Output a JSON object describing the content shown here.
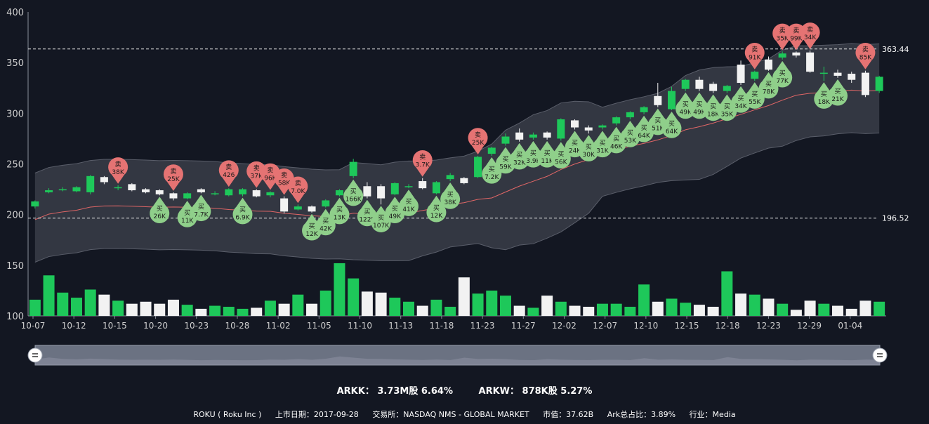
{
  "chart_data": {
    "type": "candlestick",
    "ylim": [
      100,
      400
    ],
    "yticks": [
      100,
      150,
      200,
      250,
      300,
      350,
      400
    ],
    "xticks": [
      "10-07",
      "10-12",
      "10-15",
      "10-20",
      "10-23",
      "10-28",
      "11-02",
      "11-05",
      "11-10",
      "11-13",
      "11-18",
      "11-23",
      "11-27",
      "12-02",
      "12-07",
      "12-10",
      "12-15",
      "12-18",
      "12-23",
      "12-29",
      "01-04"
    ],
    "ref_lines": [
      {
        "label": "363.44",
        "value": 363.44
      },
      {
        "label": "196.52",
        "value": 196.52
      }
    ],
    "candles": [
      [
        208,
        213,
        206,
        214
      ],
      [
        222,
        224,
        221,
        226
      ],
      [
        224,
        225,
        223,
        227
      ],
      [
        223,
        227,
        222,
        228
      ],
      [
        222,
        238,
        220,
        239
      ],
      [
        237,
        232,
        230,
        238
      ],
      [
        226,
        227,
        224,
        229
      ],
      [
        230,
        224,
        223,
        231
      ],
      [
        225,
        222,
        221,
        226
      ],
      [
        224,
        220,
        219,
        225
      ],
      [
        221,
        216,
        214,
        222
      ],
      [
        216,
        221,
        215,
        222
      ],
      [
        225,
        222,
        221,
        226
      ],
      [
        221,
        221,
        219,
        223
      ],
      [
        219,
        225,
        218,
        226
      ],
      [
        220,
        225,
        218,
        226
      ],
      [
        224,
        218,
        217,
        225
      ],
      [
        219,
        222,
        217,
        223
      ],
      [
        216,
        203,
        201,
        218
      ],
      [
        205,
        208,
        204,
        210
      ],
      [
        208,
        203,
        202,
        209
      ],
      [
        208,
        214,
        207,
        215
      ],
      [
        219,
        224,
        218,
        225
      ],
      [
        238,
        252,
        236,
        255
      ],
      [
        228,
        218,
        216,
        232
      ],
      [
        228,
        216,
        210,
        230
      ],
      [
        220,
        231,
        219,
        232
      ],
      [
        228,
        228,
        226,
        230
      ],
      [
        233,
        226,
        225,
        236
      ],
      [
        221,
        232,
        220,
        233
      ],
      [
        235,
        239,
        233,
        241
      ],
      [
        236,
        231,
        230,
        237
      ],
      [
        237,
        257,
        236,
        258
      ],
      [
        260,
        266,
        258,
        267
      ],
      [
        270,
        277,
        268,
        280
      ],
      [
        281,
        274,
        272,
        285
      ],
      [
        276,
        279,
        274,
        281
      ],
      [
        281,
        276,
        274,
        282
      ],
      [
        275,
        294,
        273,
        295
      ],
      [
        293,
        286,
        284,
        294
      ],
      [
        286,
        283,
        280,
        288
      ],
      [
        286,
        288,
        284,
        289
      ],
      [
        290,
        296,
        288,
        297
      ],
      [
        296,
        301,
        294,
        302
      ],
      [
        301,
        306,
        299,
        307
      ],
      [
        317,
        308,
        306,
        330
      ],
      [
        304,
        322,
        303,
        326
      ],
      [
        324,
        333,
        322,
        334
      ],
      [
        333,
        324,
        322,
        336
      ],
      [
        329,
        322,
        320,
        331
      ],
      [
        322,
        327,
        320,
        328
      ],
      [
        348,
        330,
        328,
        352
      ],
      [
        334,
        341,
        332,
        342
      ],
      [
        353,
        343,
        342,
        356
      ],
      [
        355,
        359,
        353,
        361
      ],
      [
        360,
        357,
        355,
        361
      ],
      [
        360,
        341,
        340,
        362
      ],
      [
        340,
        340,
        332,
        346
      ],
      [
        340,
        337,
        335,
        343
      ],
      [
        339,
        333,
        330,
        341
      ],
      [
        340,
        318,
        316,
        342
      ],
      [
        322,
        336,
        320,
        337
      ]
    ],
    "volumes": [
      116,
      140,
      123,
      118,
      126,
      121,
      115,
      112,
      114,
      112,
      116,
      111,
      107,
      110,
      109,
      107,
      108,
      115,
      112,
      121,
      112,
      125,
      152,
      137,
      124,
      123,
      118,
      114,
      110,
      116,
      109,
      138,
      122,
      125,
      120,
      110,
      108,
      120,
      114,
      110,
      109,
      112,
      112,
      109,
      131,
      114,
      117,
      113,
      111,
      109,
      144,
      122,
      121,
      117,
      112,
      106,
      115,
      112,
      110,
      107,
      115,
      114
    ],
    "annotations": [
      {
        "kind": "sell",
        "text": "38K",
        "idx": 6
      },
      {
        "kind": "sell",
        "text": "25K",
        "idx": 10
      },
      {
        "kind": "sell",
        "text": "426",
        "idx": 14
      },
      {
        "kind": "sell",
        "text": "37K",
        "idx": 16
      },
      {
        "kind": "sell",
        "text": "96K",
        "idx": 17
      },
      {
        "kind": "sell",
        "text": "58K",
        "idx": 18
      },
      {
        "kind": "sell",
        "text": "7.0K",
        "idx": 19
      },
      {
        "kind": "sell",
        "text": "3.7K",
        "idx": 28
      },
      {
        "kind": "sell",
        "text": "25K",
        "idx": 32
      },
      {
        "kind": "sell",
        "text": "91K",
        "idx": 52
      },
      {
        "kind": "sell",
        "text": "35K",
        "idx": 54
      },
      {
        "kind": "sell",
        "text": "99K",
        "idx": 55
      },
      {
        "kind": "sell",
        "text": "34K",
        "idx": 56
      },
      {
        "kind": "sell",
        "text": "85K",
        "idx": 60
      },
      {
        "kind": "buy",
        "text": "26K",
        "idx": 9
      },
      {
        "kind": "buy",
        "text": "11K",
        "idx": 11
      },
      {
        "kind": "buy",
        "text": "7.7K",
        "idx": 12
      },
      {
        "kind": "buy",
        "text": "6.9K",
        "idx": 15
      },
      {
        "kind": "buy",
        "text": "12K",
        "idx": 20
      },
      {
        "kind": "buy",
        "text": "42K",
        "idx": 21
      },
      {
        "kind": "buy",
        "text": "13K",
        "idx": 22
      },
      {
        "kind": "buy",
        "text": "166K",
        "idx": 23
      },
      {
        "kind": "buy",
        "text": "122K",
        "idx": 24
      },
      {
        "kind": "buy",
        "text": "107K",
        "idx": 25
      },
      {
        "kind": "buy",
        "text": "49K",
        "idx": 26
      },
      {
        "kind": "buy",
        "text": "41K",
        "idx": 27
      },
      {
        "kind": "buy",
        "text": "12K",
        "idx": 29
      },
      {
        "kind": "buy",
        "text": "38K",
        "idx": 30
      },
      {
        "kind": "buy",
        "text": "7.2K",
        "idx": 33
      },
      {
        "kind": "buy",
        "text": "59K",
        "idx": 34
      },
      {
        "kind": "buy",
        "text": "32K",
        "idx": 35
      },
      {
        "kind": "buy",
        "text": "3.9K",
        "idx": 36
      },
      {
        "kind": "buy",
        "text": "11K",
        "idx": 37
      },
      {
        "kind": "buy",
        "text": "56K",
        "idx": 38
      },
      {
        "kind": "buy",
        "text": "24K",
        "idx": 39
      },
      {
        "kind": "buy",
        "text": "30K",
        "idx": 40
      },
      {
        "kind": "buy",
        "text": "31K",
        "idx": 41
      },
      {
        "kind": "buy",
        "text": "46K",
        "idx": 42
      },
      {
        "kind": "buy",
        "text": "53K",
        "idx": 43
      },
      {
        "kind": "buy",
        "text": "64K",
        "idx": 44
      },
      {
        "kind": "buy",
        "text": "51K",
        "idx": 45
      },
      {
        "kind": "buy",
        "text": "64K",
        "idx": 46
      },
      {
        "kind": "buy",
        "text": "49K",
        "idx": 47
      },
      {
        "kind": "buy",
        "text": "49K",
        "idx": 48
      },
      {
        "kind": "buy",
        "text": "18K",
        "idx": 49
      },
      {
        "kind": "buy",
        "text": "35K",
        "idx": 50
      },
      {
        "kind": "buy",
        "text": "34K",
        "idx": 51
      },
      {
        "kind": "buy",
        "text": "55K",
        "idx": 52
      },
      {
        "kind": "buy",
        "text": "78K",
        "idx": 53
      },
      {
        "kind": "buy",
        "text": "77K",
        "idx": 54
      },
      {
        "kind": "buy",
        "text": "18K",
        "idx": 57
      },
      {
        "kind": "buy",
        "text": "21K",
        "idx": 58
      }
    ],
    "buy_char": "买",
    "sell_char": "卖",
    "colors": {
      "up": "#1ec85a",
      "down": "#f2f2f2",
      "band": "#3a3d48",
      "ma": "#e06666",
      "sell": "#e57373",
      "buy": "#8fcf8a",
      "text": "#cfcfcf"
    }
  },
  "summary": {
    "arkk": "ARKK： 3.73M股 6.64%",
    "arkw": "ARKW： 878K股 5.27%"
  },
  "footer": {
    "ticker": "ROKU ( Roku Inc )",
    "listing": "上市日期：2017-09-28",
    "exchange": "交易所：NASDAQ NMS - GLOBAL MARKET",
    "market_cap": "市值：37.62B",
    "ark_ratio": "Ark总占比：3.89%",
    "industry": "行业：Media"
  }
}
